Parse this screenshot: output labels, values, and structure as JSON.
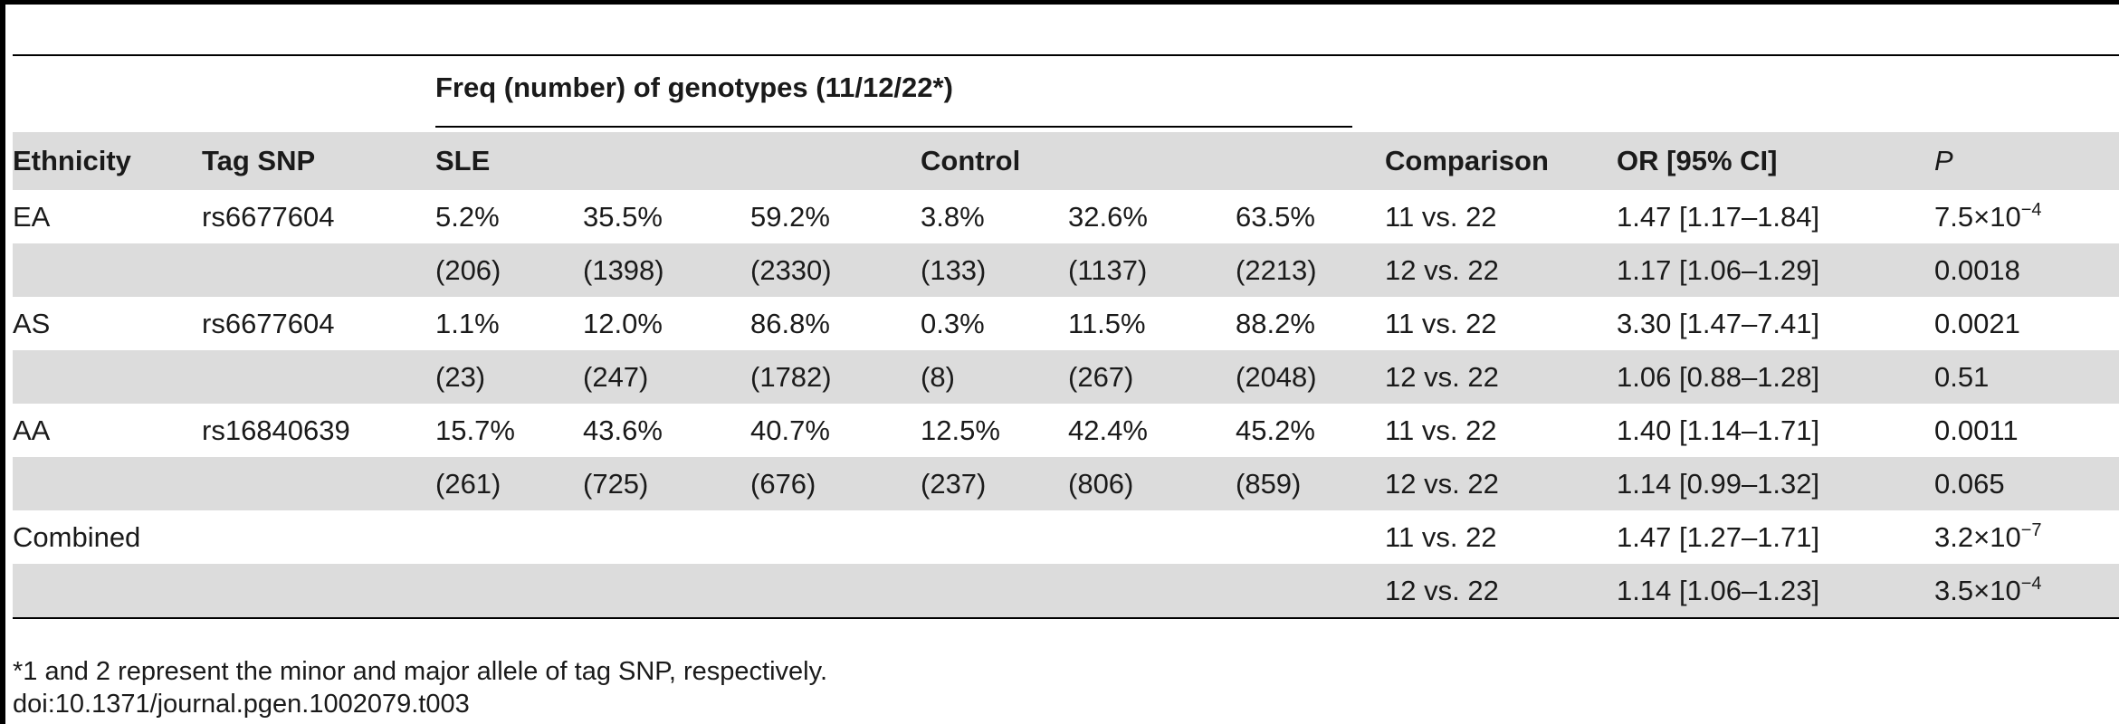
{
  "table": {
    "group_header": "Freq (number) of genotypes (11/12/22*)",
    "headers": {
      "ethnicity": "Ethnicity",
      "tag_snp": "Tag SNP",
      "sle": "SLE",
      "control": "Control",
      "comparison": "Comparison",
      "or": "OR [95% CI]",
      "p": "P"
    },
    "rows": [
      {
        "ethnicity": "EA",
        "snp": "rs6677604",
        "sle": [
          "5.2%",
          "35.5%",
          "59.2%"
        ],
        "control": [
          "3.8%",
          "32.6%",
          "63.5%"
        ],
        "comparison": "11 vs. 22",
        "or": "1.47 [1.17–1.84]",
        "p_base": "7.5×10",
        "p_exp": "−4"
      },
      {
        "ethnicity": "",
        "snp": "",
        "sle": [
          "(206)",
          "(1398)",
          "(2330)"
        ],
        "control": [
          "(133)",
          "(1137)",
          "(2213)"
        ],
        "comparison": "12 vs. 22",
        "or": "1.17 [1.06–1.29]",
        "p_base": "0.0018",
        "p_exp": ""
      },
      {
        "ethnicity": "AS",
        "snp": "rs6677604",
        "sle": [
          "1.1%",
          "12.0%",
          "86.8%"
        ],
        "control": [
          "0.3%",
          "11.5%",
          "88.2%"
        ],
        "comparison": "11 vs. 22",
        "or": "3.30 [1.47–7.41]",
        "p_base": "0.0021",
        "p_exp": ""
      },
      {
        "ethnicity": "",
        "snp": "",
        "sle": [
          "(23)",
          "(247)",
          "(1782)"
        ],
        "control": [
          "(8)",
          "(267)",
          "(2048)"
        ],
        "comparison": "12 vs. 22",
        "or": "1.06 [0.88–1.28]",
        "p_base": "0.51",
        "p_exp": ""
      },
      {
        "ethnicity": "AA",
        "snp": "rs16840639",
        "sle": [
          "15.7%",
          "43.6%",
          "40.7%"
        ],
        "control": [
          "12.5%",
          "42.4%",
          "45.2%"
        ],
        "comparison": "11 vs. 22",
        "or": "1.40 [1.14–1.71]",
        "p_base": "0.0011",
        "p_exp": ""
      },
      {
        "ethnicity": "",
        "snp": "",
        "sle": [
          "(261)",
          "(725)",
          "(676)"
        ],
        "control": [
          "(237)",
          "(806)",
          "(859)"
        ],
        "comparison": "12 vs. 22",
        "or": "1.14 [0.99–1.32]",
        "p_base": "0.065",
        "p_exp": ""
      },
      {
        "ethnicity": "Combined",
        "snp": "",
        "sle": [
          "",
          "",
          ""
        ],
        "control": [
          "",
          "",
          ""
        ],
        "comparison": "11 vs. 22",
        "or": "1.47 [1.27–1.71]",
        "p_base": "3.2×10",
        "p_exp": "−7"
      },
      {
        "ethnicity": "",
        "snp": "",
        "sle": [
          "",
          "",
          ""
        ],
        "control": [
          "",
          "",
          ""
        ],
        "comparison": "12 vs. 22",
        "or": "1.14 [1.06–1.23]",
        "p_base": "3.5×10",
        "p_exp": "−4"
      }
    ]
  },
  "footnote": "*1 and 2 represent the minor and major allele of tag SNP, respectively.",
  "doi": "doi:10.1371/journal.pgen.1002079.t003"
}
